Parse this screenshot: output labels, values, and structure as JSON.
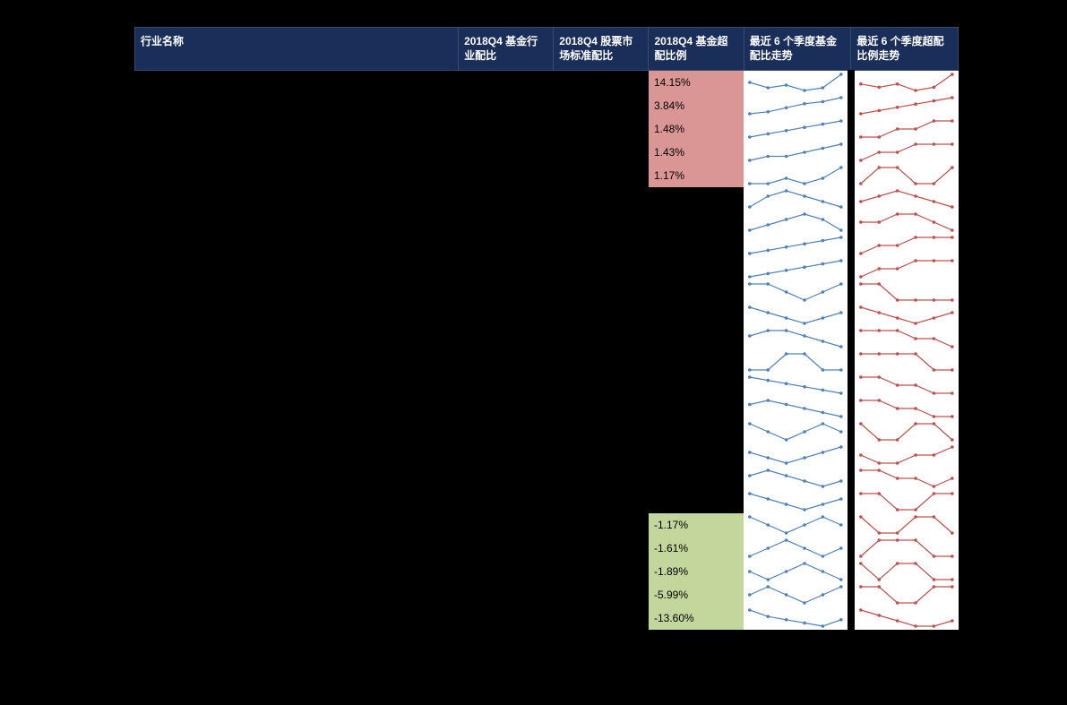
{
  "header": {
    "name": "行业名称",
    "fund_alloc": "2018Q4 基金行业配比",
    "market_std": "2018Q4 股票市场标准配比",
    "over_alloc": "2018Q4 基金超配比例",
    "trend_fund": "最近 6 个季度基金配比走势",
    "trend_over": "最近 6 个季度超配比例走势"
  },
  "colors": {
    "header_bg": "#1a2e5a",
    "highlight_pos": "#d99694",
    "highlight_neg": "#c3d69b",
    "spark_blue": "#4f81bd",
    "spark_red": "#c0504d",
    "spark_bg": "#ffffff"
  },
  "rows": [
    {
      "over": "14.15%",
      "hl": "pos",
      "fund": [
        20,
        18,
        19,
        17,
        18,
        23
      ],
      "overtrend": [
        14,
        13,
        14,
        12,
        13,
        17
      ]
    },
    {
      "over": "3.84%",
      "hl": "pos",
      "fund": [
        3,
        4,
        6,
        8,
        9,
        11
      ],
      "overtrend": [
        1,
        2,
        3,
        4,
        5,
        6
      ]
    },
    {
      "over": "1.48%",
      "hl": "pos",
      "fund": [
        2,
        3,
        4,
        5,
        6,
        7
      ],
      "overtrend": [
        1,
        1,
        2,
        2,
        3,
        3
      ]
    },
    {
      "over": "1.43%",
      "hl": "pos",
      "fund": [
        4,
        5,
        5,
        6,
        7,
        8
      ],
      "overtrend": [
        1,
        2,
        2,
        3,
        3,
        3
      ]
    },
    {
      "over": "1.17%",
      "hl": "pos",
      "fund": [
        3,
        3,
        4,
        3,
        4,
        6
      ],
      "overtrend": [
        1,
        2,
        2,
        1,
        1,
        2
      ]
    },
    {
      "over": "",
      "hl": "",
      "fund": [
        7,
        9,
        10,
        9,
        8,
        7
      ],
      "overtrend": [
        3,
        4,
        5,
        4,
        3,
        2
      ]
    },
    {
      "over": "",
      "hl": "",
      "fund": [
        6,
        7,
        8,
        9,
        8,
        6
      ],
      "overtrend": [
        2,
        2,
        3,
        3,
        2,
        1
      ]
    },
    {
      "over": "",
      "hl": "",
      "fund": [
        5,
        6,
        7,
        8,
        9,
        10
      ],
      "overtrend": [
        1,
        2,
        2,
        3,
        3,
        3
      ]
    },
    {
      "over": "",
      "hl": "",
      "fund": [
        8,
        9,
        10,
        11,
        12,
        13
      ],
      "overtrend": [
        2,
        3,
        3,
        4,
        4,
        4
      ]
    },
    {
      "over": "",
      "hl": "",
      "fund": [
        10,
        10,
        9,
        8,
        9,
        10
      ],
      "overtrend": [
        3,
        3,
        2,
        2,
        2,
        2
      ]
    },
    {
      "over": "",
      "hl": "",
      "fund": [
        9,
        8,
        7,
        6,
        7,
        8
      ],
      "overtrend": [
        4,
        3,
        2,
        1,
        2,
        3
      ]
    },
    {
      "over": "",
      "hl": "",
      "fund": [
        7,
        8,
        8,
        7,
        6,
        5
      ],
      "overtrend": [
        3,
        3,
        3,
        2,
        2,
        1
      ]
    },
    {
      "over": "",
      "hl": "",
      "fund": [
        6,
        6,
        7,
        7,
        6,
        6
      ],
      "overtrend": [
        2,
        2,
        2,
        2,
        1,
        1
      ]
    },
    {
      "over": "",
      "hl": "",
      "fund": [
        8,
        7,
        6,
        5,
        4,
        3
      ],
      "overtrend": [
        3,
        3,
        2,
        2,
        1,
        1
      ]
    },
    {
      "over": "",
      "hl": "",
      "fund": [
        9,
        10,
        9,
        8,
        7,
        6
      ],
      "overtrend": [
        4,
        4,
        3,
        3,
        2,
        2
      ]
    },
    {
      "over": "",
      "hl": "",
      "fund": [
        5,
        4,
        3,
        4,
        5,
        4
      ],
      "overtrend": [
        2,
        1,
        1,
        2,
        2,
        1
      ]
    },
    {
      "over": "",
      "hl": "",
      "fund": [
        10,
        9,
        8,
        9,
        10,
        11
      ],
      "overtrend": [
        3,
        2,
        2,
        3,
        3,
        4
      ]
    },
    {
      "over": "",
      "hl": "",
      "fund": [
        6,
        7,
        6,
        5,
        4,
        5
      ],
      "overtrend": [
        3,
        3,
        2,
        2,
        1,
        2
      ]
    },
    {
      "over": "",
      "hl": "",
      "fund": [
        8,
        7,
        6,
        5,
        6,
        7
      ],
      "overtrend": [
        2,
        2,
        1,
        1,
        2,
        2
      ]
    },
    {
      "over": "-1.17%",
      "hl": "neg",
      "fund": [
        7,
        6,
        5,
        6,
        7,
        6
      ],
      "overtrend": [
        2,
        1,
        1,
        2,
        2,
        1
      ]
    },
    {
      "over": "-1.61%",
      "hl": "neg",
      "fund": [
        6,
        7,
        8,
        7,
        6,
        7
      ],
      "overtrend": [
        1,
        2,
        2,
        2,
        1,
        1
      ]
    },
    {
      "over": "-1.89%",
      "hl": "neg",
      "fund": [
        5,
        4,
        5,
        6,
        5,
        4
      ],
      "overtrend": [
        2,
        1,
        2,
        2,
        1,
        1
      ]
    },
    {
      "over": "-5.99%",
      "hl": "neg",
      "fund": [
        8,
        9,
        8,
        7,
        8,
        9
      ],
      "overtrend": [
        3,
        3,
        2,
        2,
        3,
        3
      ]
    },
    {
      "over": "-13.60%",
      "hl": "neg",
      "fund": [
        12,
        10,
        9,
        8,
        7,
        9
      ],
      "overtrend": [
        5,
        4,
        3,
        2,
        2,
        3
      ]
    }
  ]
}
